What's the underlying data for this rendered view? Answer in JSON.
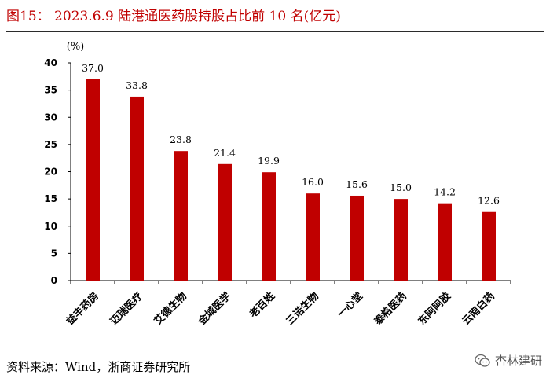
{
  "header": {
    "title": "图15：  2023.6.9 陆港通医药股持股占比前 10 名(亿元)"
  },
  "footer": {
    "source": "资料来源：Wind，浙商证券研究所",
    "watermark": "杏林建研",
    "watermark_icon": "wechat-icon"
  },
  "colors": {
    "bar": "#c00000",
    "title": "#c00000"
  },
  "chart_data": {
    "type": "bar",
    "title": "",
    "xlabel": "",
    "ylabel": "(%)",
    "categories": [
      "益丰药房",
      "迈瑞医疗",
      "艾德生物",
      "金域医学",
      "老百姓",
      "三诺生物",
      "一心堂",
      "泰格医药",
      "东阿阿胶",
      "云南白药"
    ],
    "values": [
      37.0,
      33.8,
      23.8,
      21.4,
      19.9,
      16.0,
      15.6,
      15.0,
      14.2,
      12.6
    ],
    "value_labels": [
      "37.0",
      "33.8",
      "23.8",
      "21.4",
      "19.9",
      "16.0",
      "15.6",
      "15.0",
      "14.2",
      "12.6"
    ],
    "yticks": [
      "0",
      "5",
      "10",
      "15",
      "20",
      "25",
      "30",
      "35",
      "40"
    ],
    "ylim": [
      0,
      40
    ],
    "grid": false,
    "legend": "none"
  }
}
